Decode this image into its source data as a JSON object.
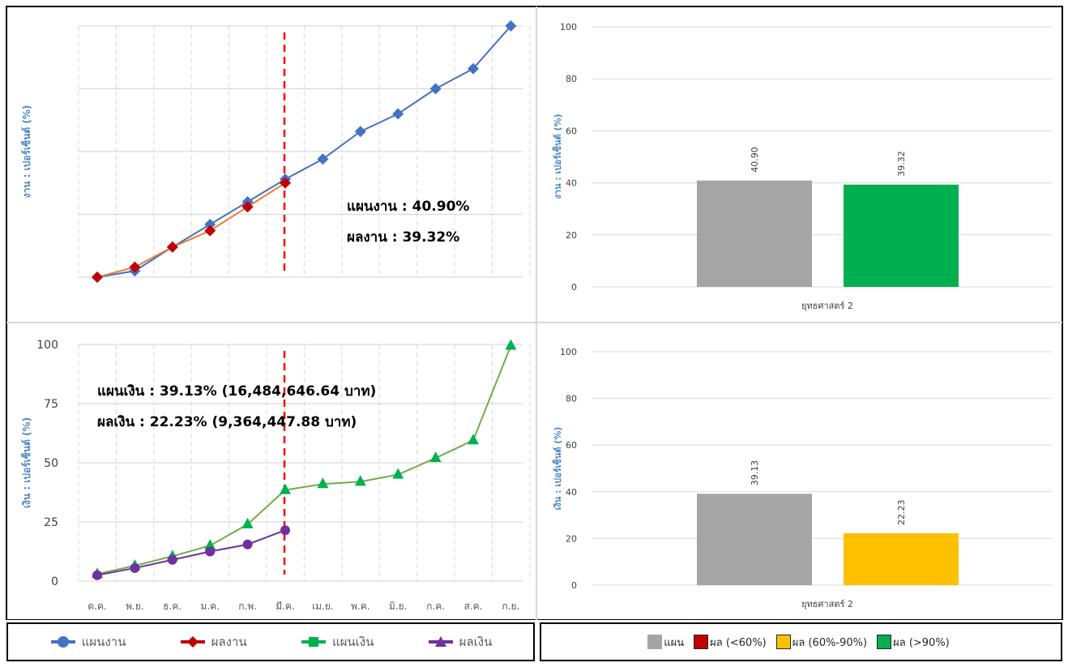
{
  "months": [
    "ต.ค.",
    "พ.ย.",
    "ธ.ค.",
    "ม.ค.",
    "ก.พ.",
    "มี.ค.",
    "เม.ย.",
    "พ.ค.",
    "มิ.ย.",
    "ก.ค.",
    "ส.ค.",
    "ก.ย."
  ],
  "chart_data": [
    {
      "type": "line",
      "ylabel": "งาน : เปอร์เซ็นต์ (%)",
      "ylim": [
        0,
        100
      ],
      "grid": true,
      "current_month": "มี.ค.",
      "series": [
        {
          "name": "แผนงาน",
          "color": "#4472C4",
          "marker": "diamond",
          "values": [
            0,
            2.5,
            12,
            21,
            30,
            39,
            47,
            58,
            65,
            75,
            83,
            100
          ]
        },
        {
          "name": "ผลงาน",
          "color": "#C00000",
          "line_color": "#ED7D31",
          "marker": "diamond",
          "values": [
            0,
            4,
            12,
            18.5,
            28,
            37.5
          ]
        }
      ],
      "annotations": [
        "แผนงาน : 40.90%",
        "ผลงาน : 39.32%"
      ]
    },
    {
      "type": "bar",
      "ylabel": "งาน : เปอร์เซ็นต์ (%)",
      "ylim": [
        0,
        100
      ],
      "yticks": [
        "0",
        "20",
        "40",
        "60",
        "80",
        "100"
      ],
      "categories": [
        "ยุทธศาสตร์ 2"
      ],
      "series": [
        {
          "name": "แผน",
          "color": "#A5A5A5",
          "values": [
            40.9
          ],
          "label": "40.90"
        },
        {
          "name": "ผล",
          "color": "#00B050",
          "values": [
            39.32
          ],
          "label": "39.32"
        }
      ]
    },
    {
      "type": "line",
      "ylabel": "เงิน : เปอร์เซ็นต์ (%)",
      "ylim": [
        0,
        100
      ],
      "yticks": [
        "0",
        "25",
        "50",
        "75",
        "100"
      ],
      "grid": true,
      "current_month": "มี.ค.",
      "series": [
        {
          "name": "แผนเงิน",
          "color": "#70AD47",
          "marker_color": "#00B050",
          "marker": "triangle",
          "values": [
            3,
            6.5,
            10.5,
            15,
            24,
            38.5,
            41,
            42,
            45,
            52,
            59.5,
            99.5
          ]
        },
        {
          "name": "ผลเงิน",
          "color": "#7030A0",
          "marker": "circle",
          "values": [
            2.5,
            5.5,
            9,
            12.5,
            15.5,
            21.5
          ]
        }
      ],
      "annotations": [
        "แผนเงิน : 39.13% (16,484,646.64 บาท)",
        "ผลเงิน : 22.23% (9,364,447.88 บาท)"
      ]
    },
    {
      "type": "bar",
      "ylabel": "เงิน : เปอร์เซ็นต์ (%)",
      "ylim": [
        0,
        100
      ],
      "yticks": [
        "0",
        "20",
        "40",
        "60",
        "80",
        "100"
      ],
      "categories": [
        "ยุทธศาสตร์ 2"
      ],
      "series": [
        {
          "name": "แผน",
          "color": "#A5A5A5",
          "values": [
            39.13
          ],
          "label": "39.13"
        },
        {
          "name": "ผล",
          "color": "#FFC000",
          "values": [
            22.23
          ],
          "label": "22.23"
        }
      ]
    }
  ],
  "legend_left": [
    {
      "label": "แผนงาน",
      "color": "#4472C4"
    },
    {
      "label": "ผลงาน",
      "color": "#C00000"
    },
    {
      "label": "แผนเงิน",
      "color": "#00B050"
    },
    {
      "label": "ผลเงิน",
      "color": "#7030A0"
    }
  ],
  "legend_right": [
    {
      "label": "แผน",
      "color": "#A5A5A5"
    },
    {
      "label": "ผล (<60%)",
      "color": "#C00000"
    },
    {
      "label": "ผล (60%-90%)",
      "color": "#FFC000"
    },
    {
      "label": "ผล (>90%)",
      "color": "#00B050"
    }
  ]
}
